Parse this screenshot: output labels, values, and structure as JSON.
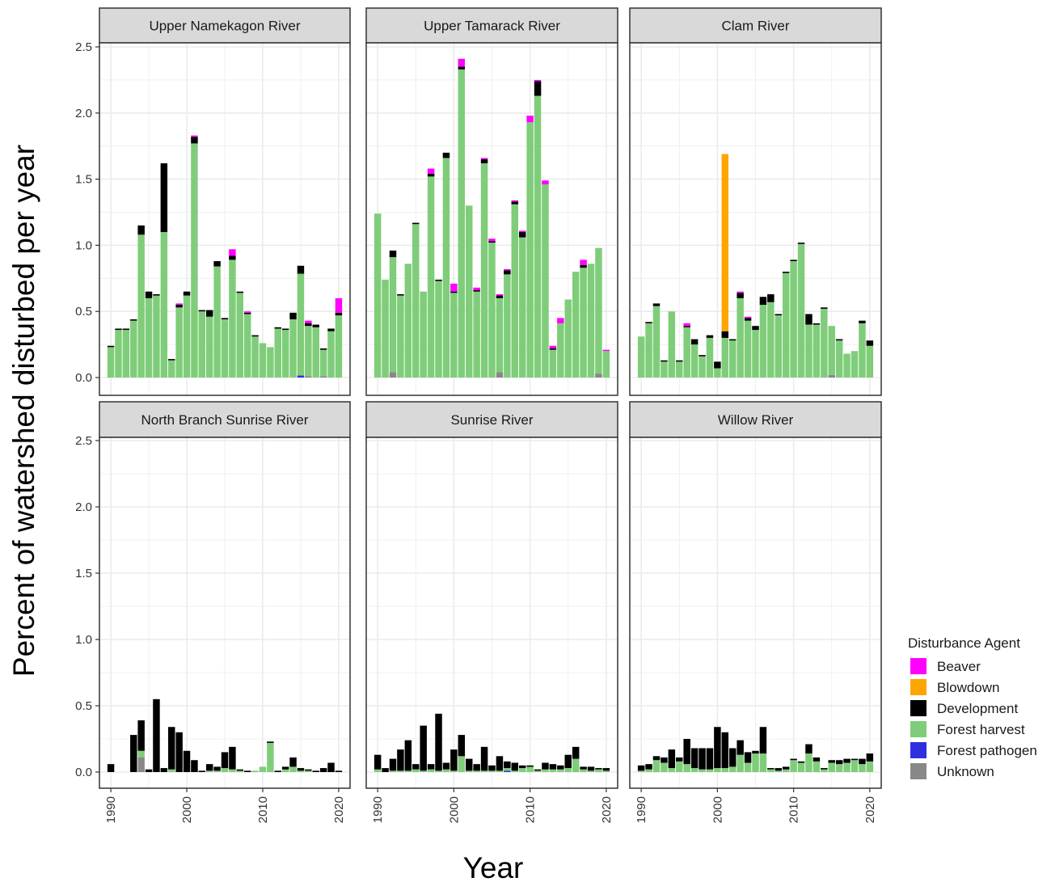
{
  "chart_data": {
    "type": "bar",
    "stacked": true,
    "facets": [
      "Upper Namekagon River",
      "Upper Tamarack River",
      "Clam River",
      "North Branch Sunrise River",
      "Sunrise River",
      "Willow River"
    ],
    "x_ticks": [
      "1990",
      "2000",
      "2010",
      "2020"
    ],
    "xlim": [
      1988.5,
      2021.5
    ],
    "y_ticks": [
      "0.0",
      "0.5",
      "1.0",
      "1.5",
      "2.0",
      "2.5"
    ],
    "ylim": [
      0,
      2.5
    ],
    "xlabel": "Year",
    "ylabel": "Percent of watershed disturbed per year",
    "grid": true,
    "legend": {
      "title": "Disturbance Agent",
      "placement": "right-bottom",
      "entries": [
        {
          "name": "Beaver",
          "color": "#ff00ff"
        },
        {
          "name": "Blowdown",
          "color": "#ffa500"
        },
        {
          "name": "Development",
          "color": "#000000"
        },
        {
          "name": "Forest harvest",
          "color": "#7fcd7a"
        },
        {
          "name": "Forest pathogen",
          "color": "#2f2fe0"
        },
        {
          "name": "Unknown",
          "color": "#888888"
        }
      ]
    },
    "series_order": [
      "Unknown",
      "Forest pathogen",
      "Forest harvest",
      "Development",
      "Blowdown",
      "Beaver"
    ],
    "years": [
      1990,
      1991,
      1992,
      1993,
      1994,
      1995,
      1996,
      1997,
      1998,
      1999,
      2000,
      2001,
      2002,
      2003,
      2004,
      2005,
      2006,
      2007,
      2008,
      2009,
      2010,
      2011,
      2012,
      2013,
      2014,
      2015,
      2016,
      2017,
      2018,
      2019,
      2020
    ],
    "panels": [
      {
        "name": "Upper Namekagon River",
        "Forest harvest": [
          0.23,
          0.36,
          0.36,
          0.43,
          1.08,
          0.6,
          0.62,
          1.1,
          0.13,
          0.53,
          0.62,
          1.77,
          0.5,
          0.46,
          0.84,
          0.44,
          0.89,
          0.64,
          0.48,
          0.31,
          0.26,
          0.23,
          0.37,
          0.36,
          0.44,
          0.77,
          0.38,
          0.38,
          0.2,
          0.35,
          0.47
        ],
        "Development": [
          0.01,
          0.01,
          0.01,
          0.01,
          0.07,
          0.05,
          0.01,
          0.52,
          0.01,
          0.02,
          0.03,
          0.05,
          0.01,
          0.05,
          0.04,
          0.01,
          0.03,
          0.01,
          0.01,
          0.01,
          0.0,
          0.0,
          0.01,
          0.01,
          0.05,
          0.06,
          0.02,
          0.02,
          0.01,
          0.02,
          0.02
        ],
        "Beaver": [
          0,
          0,
          0,
          0,
          0,
          0,
          0,
          0,
          0,
          0.01,
          0,
          0.01,
          0,
          0,
          0,
          0,
          0.05,
          0,
          0.01,
          0,
          0,
          0,
          0,
          0,
          0,
          0,
          0.02,
          0,
          0,
          0,
          0.11
        ],
        "Blowdown": [
          0,
          0,
          0,
          0,
          0,
          0,
          0,
          0,
          0,
          0,
          0,
          0,
          0,
          0,
          0,
          0,
          0,
          0,
          0,
          0,
          0,
          0,
          0,
          0,
          0,
          0,
          0,
          0,
          0,
          0,
          0
        ],
        "Forest pathogen": [
          0,
          0,
          0,
          0,
          0,
          0,
          0,
          0,
          0,
          0,
          0,
          0,
          0,
          0,
          0,
          0,
          0,
          0,
          0,
          0,
          0,
          0,
          0,
          0,
          0,
          0.015,
          0,
          0,
          0,
          0,
          0
        ],
        "Unknown": [
          0,
          0,
          0,
          0,
          0,
          0,
          0,
          0,
          0,
          0,
          0,
          0,
          0,
          0,
          0,
          0,
          0,
          0,
          0,
          0,
          0,
          0,
          0,
          0,
          0,
          0,
          0.01,
          0,
          0.01,
          0,
          0
        ]
      },
      {
        "name": "Upper Tamarack River",
        "Forest harvest": [
          1.24,
          0.74,
          0.87,
          0.62,
          0.86,
          1.16,
          0.65,
          1.52,
          0.73,
          1.66,
          0.64,
          2.33,
          1.3,
          0.65,
          1.62,
          1.02,
          0.56,
          0.78,
          1.31,
          1.06,
          1.93,
          2.13,
          1.46,
          0.21,
          0.41,
          0.59,
          0.8,
          0.83,
          0.86,
          0.95,
          0.2
        ],
        "Development": [
          0,
          0,
          0.05,
          0.01,
          0,
          0.01,
          0,
          0.02,
          0.01,
          0.04,
          0.01,
          0.02,
          0,
          0.01,
          0.03,
          0.01,
          0.02,
          0.03,
          0.02,
          0.04,
          0,
          0.11,
          0,
          0.01,
          0,
          0,
          0,
          0.02,
          0,
          0,
          0
        ],
        "Beaver": [
          0,
          0,
          0,
          0,
          0,
          0,
          0,
          0.04,
          0,
          0,
          0.06,
          0.06,
          0,
          0.02,
          0.01,
          0.02,
          0.01,
          0.01,
          0.01,
          0.01,
          0.05,
          0.01,
          0.03,
          0.02,
          0.04,
          0,
          0,
          0.04,
          0,
          0,
          0.01
        ],
        "Blowdown": [
          0,
          0,
          0,
          0,
          0,
          0,
          0,
          0,
          0,
          0,
          0,
          0,
          0,
          0,
          0,
          0,
          0,
          0,
          0,
          0,
          0,
          0,
          0,
          0,
          0,
          0,
          0,
          0,
          0,
          0,
          0
        ],
        "Forest pathogen": [
          0,
          0,
          0,
          0,
          0,
          0,
          0,
          0,
          0,
          0,
          0,
          0,
          0,
          0,
          0,
          0,
          0,
          0,
          0,
          0,
          0,
          0,
          0,
          0,
          0,
          0,
          0,
          0,
          0,
          0,
          0
        ],
        "Unknown": [
          0,
          0,
          0.04,
          0,
          0,
          0,
          0,
          0,
          0,
          0,
          0,
          0,
          0,
          0,
          0,
          0,
          0.04,
          0,
          0,
          0,
          0,
          0,
          0,
          0,
          0,
          0,
          0,
          0,
          0,
          0.03,
          0
        ]
      },
      {
        "name": "Clam River",
        "Forest harvest": [
          0.31,
          0.41,
          0.54,
          0.12,
          0.5,
          0.12,
          0.38,
          0.25,
          0.16,
          0.3,
          0.07,
          0.3,
          0.28,
          0.6,
          0.43,
          0.36,
          0.55,
          0.57,
          0.47,
          0.79,
          0.88,
          1.01,
          0.4,
          0.4,
          0.52,
          0.37,
          0.28,
          0.18,
          0.2,
          0.41,
          0.24
        ],
        "Development": [
          0,
          0.01,
          0.02,
          0.01,
          0,
          0.01,
          0.01,
          0.04,
          0.01,
          0.02,
          0.05,
          0.05,
          0.01,
          0.04,
          0.02,
          0.03,
          0.06,
          0.06,
          0.01,
          0.01,
          0.01,
          0.01,
          0.08,
          0.01,
          0.01,
          0,
          0.01,
          0,
          0,
          0.02,
          0.04
        ],
        "Beaver": [
          0,
          0,
          0,
          0,
          0,
          0,
          0.02,
          0,
          0,
          0,
          0,
          0,
          0,
          0.01,
          0.01,
          0,
          0,
          0,
          0,
          0,
          0,
          0,
          0,
          0,
          0,
          0,
          0,
          0,
          0,
          0,
          0
        ],
        "Blowdown": [
          0,
          0,
          0,
          0,
          0,
          0,
          0,
          0,
          0,
          0,
          0,
          1.34,
          0,
          0,
          0,
          0,
          0,
          0,
          0,
          0,
          0,
          0,
          0,
          0,
          0,
          0,
          0,
          0,
          0,
          0,
          0
        ],
        "Forest pathogen": [
          0,
          0,
          0,
          0,
          0,
          0,
          0,
          0,
          0,
          0,
          0,
          0,
          0,
          0,
          0,
          0,
          0,
          0,
          0,
          0,
          0,
          0,
          0,
          0,
          0,
          0,
          0,
          0,
          0,
          0,
          0
        ],
        "Unknown": [
          0,
          0,
          0,
          0,
          0,
          0,
          0,
          0,
          0,
          0,
          0,
          0,
          0,
          0,
          0,
          0,
          0,
          0,
          0,
          0,
          0,
          0,
          0,
          0,
          0,
          0.02,
          0,
          0,
          0,
          0,
          0
        ]
      },
      {
        "name": "North Branch Sunrise River",
        "Forest harvest": [
          0,
          0,
          0,
          0,
          0.05,
          0,
          0,
          0,
          0.02,
          0,
          0,
          0,
          0,
          0.01,
          0.01,
          0.03,
          0.02,
          0.01,
          0,
          0.01,
          0.04,
          0.22,
          0,
          0.02,
          0.04,
          0.01,
          0.01,
          0,
          0,
          0,
          0
        ],
        "Development": [
          0.06,
          0,
          0,
          0.28,
          0.23,
          0.02,
          0.55,
          0.03,
          0.32,
          0.3,
          0.16,
          0.09,
          0.01,
          0.05,
          0.03,
          0.12,
          0.17,
          0.01,
          0.01,
          0,
          0,
          0.01,
          0.01,
          0.02,
          0.07,
          0.02,
          0.01,
          0.01,
          0.03,
          0.07,
          0.01
        ],
        "Beaver": [
          0,
          0,
          0,
          0,
          0,
          0,
          0,
          0,
          0,
          0,
          0,
          0,
          0,
          0,
          0,
          0,
          0,
          0,
          0,
          0,
          0,
          0,
          0,
          0,
          0,
          0,
          0,
          0,
          0,
          0,
          0
        ],
        "Blowdown": [
          0,
          0,
          0,
          0,
          0,
          0,
          0,
          0,
          0,
          0,
          0,
          0,
          0,
          0,
          0,
          0,
          0,
          0,
          0,
          0,
          0,
          0,
          0,
          0,
          0,
          0,
          0,
          0,
          0,
          0,
          0
        ],
        "Forest pathogen": [
          0,
          0,
          0,
          0,
          0,
          0,
          0,
          0,
          0,
          0,
          0,
          0,
          0,
          0,
          0,
          0,
          0,
          0,
          0,
          0,
          0,
          0,
          0,
          0,
          0,
          0,
          0,
          0,
          0,
          0,
          0
        ],
        "Unknown": [
          0,
          0,
          0,
          0,
          0.11,
          0,
          0,
          0,
          0,
          0,
          0,
          0,
          0,
          0,
          0,
          0,
          0,
          0,
          0,
          0,
          0,
          0,
          0,
          0,
          0,
          0,
          0,
          0,
          0,
          0,
          0
        ]
      },
      {
        "name": "Sunrise River",
        "Forest harvest": [
          0.02,
          0,
          0.01,
          0.01,
          0.01,
          0.02,
          0.01,
          0.02,
          0.01,
          0.02,
          0.01,
          0.12,
          0.01,
          0.01,
          0.01,
          0.01,
          0.01,
          0.02,
          0.01,
          0.03,
          0.04,
          0.01,
          0.02,
          0.02,
          0.02,
          0.03,
          0.1,
          0.02,
          0.01,
          0.02,
          0.01
        ],
        "Development": [
          0.11,
          0.03,
          0.09,
          0.16,
          0.23,
          0.04,
          0.34,
          0.04,
          0.43,
          0.05,
          0.16,
          0.16,
          0.09,
          0.05,
          0.18,
          0.04,
          0.11,
          0.05,
          0.06,
          0.02,
          0.01,
          0.01,
          0.05,
          0.04,
          0.03,
          0.1,
          0.09,
          0.02,
          0.03,
          0.01,
          0.02
        ],
        "Beaver": [
          0,
          0,
          0,
          0,
          0,
          0,
          0,
          0,
          0,
          0,
          0,
          0,
          0,
          0,
          0,
          0,
          0,
          0,
          0,
          0,
          0,
          0,
          0,
          0,
          0,
          0,
          0,
          0,
          0,
          0,
          0
        ],
        "Blowdown": [
          0,
          0,
          0,
          0,
          0,
          0,
          0,
          0,
          0,
          0,
          0,
          0,
          0,
          0,
          0,
          0,
          0,
          0,
          0,
          0,
          0,
          0,
          0,
          0,
          0,
          0,
          0,
          0,
          0,
          0,
          0
        ],
        "Forest pathogen": [
          0,
          0,
          0,
          0,
          0,
          0,
          0,
          0,
          0,
          0,
          0,
          0,
          0,
          0,
          0,
          0,
          0,
          0.01,
          0,
          0,
          0,
          0,
          0,
          0,
          0,
          0,
          0,
          0,
          0,
          0,
          0
        ],
        "Unknown": [
          0,
          0,
          0,
          0,
          0,
          0,
          0,
          0,
          0,
          0,
          0,
          0,
          0,
          0,
          0,
          0,
          0,
          0,
          0,
          0,
          0,
          0,
          0,
          0,
          0,
          0,
          0,
          0,
          0,
          0,
          0
        ]
      },
      {
        "name": "Willow River",
        "Forest harvest": [
          0.01,
          0.02,
          0.09,
          0.07,
          0.03,
          0.08,
          0.06,
          0.03,
          0.02,
          0.02,
          0.03,
          0.03,
          0.04,
          0.13,
          0.07,
          0.14,
          0.14,
          0.02,
          0.01,
          0.02,
          0.09,
          0.07,
          0.14,
          0.08,
          0.02,
          0.07,
          0.06,
          0.07,
          0.09,
          0.06,
          0.08
        ],
        "Development": [
          0.04,
          0.04,
          0.03,
          0.04,
          0.14,
          0.03,
          0.19,
          0.15,
          0.16,
          0.16,
          0.31,
          0.27,
          0.14,
          0.11,
          0.08,
          0.02,
          0.2,
          0.01,
          0.02,
          0.02,
          0.01,
          0.01,
          0.07,
          0.03,
          0.01,
          0.02,
          0.03,
          0.03,
          0.01,
          0.04,
          0.06
        ],
        "Beaver": [
          0,
          0,
          0,
          0,
          0,
          0,
          0,
          0,
          0,
          0,
          0,
          0,
          0,
          0,
          0,
          0,
          0,
          0,
          0,
          0,
          0,
          0,
          0,
          0,
          0,
          0,
          0,
          0,
          0,
          0,
          0
        ],
        "Blowdown": [
          0,
          0,
          0,
          0,
          0,
          0,
          0,
          0,
          0,
          0,
          0,
          0,
          0,
          0,
          0,
          0,
          0,
          0,
          0,
          0,
          0,
          0,
          0,
          0,
          0,
          0,
          0,
          0,
          0,
          0,
          0
        ],
        "Forest pathogen": [
          0,
          0,
          0,
          0,
          0,
          0,
          0,
          0,
          0,
          0,
          0,
          0,
          0,
          0,
          0,
          0,
          0,
          0,
          0,
          0,
          0,
          0,
          0,
          0,
          0,
          0,
          0,
          0,
          0,
          0,
          0
        ],
        "Unknown": [
          0,
          0,
          0,
          0,
          0,
          0,
          0,
          0,
          0,
          0,
          0,
          0,
          0,
          0,
          0,
          0,
          0,
          0,
          0,
          0,
          0,
          0,
          0,
          0,
          0,
          0,
          0,
          0,
          0,
          0,
          0
        ]
      }
    ]
  }
}
